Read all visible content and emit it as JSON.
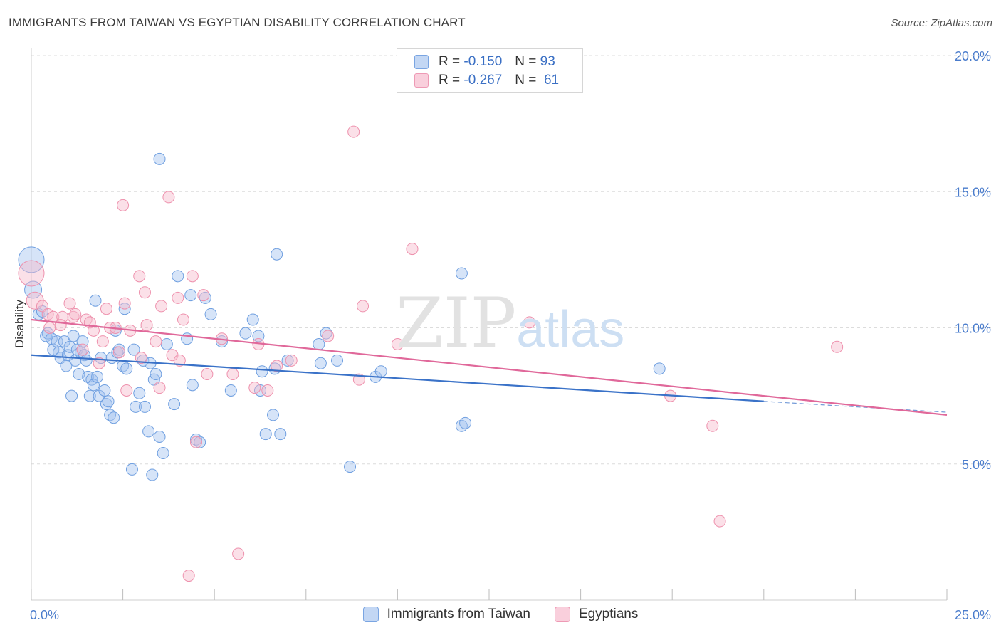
{
  "title": "IMMIGRANTS FROM TAIWAN VS EGYPTIAN DISABILITY CORRELATION CHART",
  "source": "Source: ZipAtlas.com",
  "watermark": {
    "zip": "ZIP",
    "atlas": "atlas"
  },
  "colors": {
    "taiwan": "#6f9fe0",
    "taiwan_line": "#3a72c8",
    "egypt": "#ee91ad",
    "egypt_line": "#e0689a",
    "axis_text": "#4a7ccc"
  },
  "legend": {
    "rows": [
      {
        "r_label": "R = ",
        "r_value": "-0.150",
        "n_label": "N = ",
        "n_value": "93"
      },
      {
        "r_label": "R = ",
        "r_value": "-0.267",
        "n_label": "N = ",
        "n_value": "61"
      }
    ]
  },
  "bottom_legend": [
    "Immigrants from Taiwan",
    "Egyptians"
  ],
  "chart_data": {
    "type": "scatter",
    "xlabel": "",
    "ylabel": "Disability",
    "xlim": [
      0,
      25
    ],
    "ylim": [
      0,
      20
    ],
    "x_ticks": [
      0,
      2.5,
      5,
      7.5,
      10,
      12.5,
      15,
      17.5,
      20,
      22.5,
      25
    ],
    "x_tick_labels": {
      "0": "0.0%",
      "25": "25.0%"
    },
    "y_ticks": [
      5,
      10,
      15,
      20
    ],
    "y_tick_labels": [
      "5.0%",
      "10.0%",
      "15.0%",
      "20.0%"
    ],
    "grid": true,
    "legend_position": "top-center",
    "series": [
      {
        "name": "Immigrants from Taiwan",
        "points": [
          [
            0.0,
            12.5,
            3
          ],
          [
            0.05,
            11.4,
            2
          ],
          [
            0.2,
            10.5,
            1
          ],
          [
            0.3,
            10.6,
            1
          ],
          [
            0.4,
            9.7,
            1
          ],
          [
            0.45,
            9.8,
            1
          ],
          [
            0.55,
            9.6,
            1
          ],
          [
            0.6,
            9.2,
            1
          ],
          [
            0.7,
            9.5,
            1
          ],
          [
            0.75,
            9.1,
            1
          ],
          [
            0.8,
            8.9,
            1
          ],
          [
            0.9,
            9.5,
            1
          ],
          [
            0.95,
            8.6,
            1
          ],
          [
            1.0,
            9.0,
            1
          ],
          [
            1.05,
            9.3,
            1
          ],
          [
            1.1,
            7.5,
            1
          ],
          [
            1.15,
            9.7,
            1
          ],
          [
            1.2,
            8.8,
            1
          ],
          [
            1.25,
            9.2,
            1
          ],
          [
            1.3,
            8.3,
            1
          ],
          [
            1.35,
            9.1,
            1
          ],
          [
            1.4,
            9.5,
            1
          ],
          [
            1.45,
            9.0,
            1
          ],
          [
            1.5,
            8.8,
            1
          ],
          [
            1.55,
            8.2,
            1
          ],
          [
            1.6,
            7.5,
            1
          ],
          [
            1.65,
            8.1,
            1
          ],
          [
            1.7,
            7.9,
            1
          ],
          [
            1.75,
            11.0,
            1
          ],
          [
            1.8,
            8.2,
            1
          ],
          [
            1.85,
            7.5,
            1
          ],
          [
            1.9,
            8.9,
            1
          ],
          [
            2.0,
            7.7,
            1
          ],
          [
            2.05,
            7.2,
            1
          ],
          [
            2.1,
            7.3,
            1
          ],
          [
            2.15,
            6.8,
            1
          ],
          [
            2.2,
            8.9,
            1
          ],
          [
            2.25,
            6.7,
            1
          ],
          [
            2.3,
            9.9,
            1
          ],
          [
            2.35,
            9.1,
            1
          ],
          [
            2.4,
            9.2,
            1
          ],
          [
            2.5,
            8.6,
            1
          ],
          [
            2.55,
            10.7,
            1
          ],
          [
            2.6,
            8.5,
            1
          ],
          [
            2.75,
            4.8,
            1
          ],
          [
            2.8,
            9.2,
            1
          ],
          [
            2.85,
            7.1,
            1
          ],
          [
            2.95,
            7.6,
            1
          ],
          [
            3.05,
            8.8,
            1
          ],
          [
            3.1,
            7.1,
            1
          ],
          [
            3.2,
            6.2,
            1
          ],
          [
            3.25,
            8.7,
            1
          ],
          [
            3.3,
            4.6,
            1
          ],
          [
            3.35,
            8.1,
            1
          ],
          [
            3.4,
            8.3,
            1
          ],
          [
            3.5,
            16.2,
            1
          ],
          [
            3.5,
            6.0,
            1
          ],
          [
            3.6,
            5.4,
            1
          ],
          [
            3.7,
            9.4,
            1
          ],
          [
            3.9,
            7.2,
            1
          ],
          [
            4.0,
            11.9,
            1
          ],
          [
            4.25,
            9.6,
            1
          ],
          [
            4.35,
            11.2,
            1
          ],
          [
            4.4,
            7.9,
            1
          ],
          [
            4.5,
            5.9,
            1
          ],
          [
            4.6,
            5.8,
            1
          ],
          [
            4.75,
            11.1,
            1
          ],
          [
            4.9,
            10.5,
            1
          ],
          [
            5.2,
            9.5,
            1
          ],
          [
            5.45,
            7.7,
            1
          ],
          [
            5.85,
            9.8,
            1
          ],
          [
            6.05,
            10.3,
            1
          ],
          [
            6.2,
            9.7,
            1
          ],
          [
            6.25,
            7.7,
            1
          ],
          [
            6.3,
            8.4,
            1
          ],
          [
            6.4,
            6.1,
            1
          ],
          [
            6.6,
            6.8,
            1
          ],
          [
            6.65,
            8.5,
            1
          ],
          [
            6.7,
            12.7,
            1
          ],
          [
            6.8,
            6.1,
            1
          ],
          [
            7.0,
            8.8,
            1
          ],
          [
            7.85,
            9.4,
            1
          ],
          [
            7.9,
            8.7,
            1
          ],
          [
            8.05,
            9.8,
            1
          ],
          [
            8.35,
            8.8,
            1
          ],
          [
            8.7,
            4.9,
            1
          ],
          [
            9.4,
            8.2,
            1
          ],
          [
            9.55,
            8.4,
            1
          ],
          [
            11.75,
            6.4,
            1
          ],
          [
            11.85,
            6.5,
            1
          ],
          [
            11.75,
            12.0,
            1
          ],
          [
            17.15,
            8.5,
            1
          ]
        ],
        "trend": {
          "x": [
            0,
            20
          ],
          "y": [
            9.0,
            7.3
          ],
          "dashed_to": [
            25,
            6.9
          ]
        }
      },
      {
        "name": "Egyptians",
        "points": [
          [
            0.0,
            12.0,
            3
          ],
          [
            0.1,
            11.0,
            2
          ],
          [
            0.3,
            10.8,
            1
          ],
          [
            0.45,
            10.5,
            1
          ],
          [
            0.5,
            10.0,
            1
          ],
          [
            0.6,
            10.4,
            1
          ],
          [
            0.85,
            10.4,
            1
          ],
          [
            1.05,
            10.9,
            1
          ],
          [
            1.15,
            10.4,
            1
          ],
          [
            1.2,
            10.5,
            1
          ],
          [
            1.4,
            9.2,
            1
          ],
          [
            1.5,
            10.3,
            1
          ],
          [
            1.6,
            10.2,
            1
          ],
          [
            1.7,
            9.9,
            1
          ],
          [
            1.85,
            8.7,
            1
          ],
          [
            1.95,
            9.5,
            1
          ],
          [
            2.05,
            10.7,
            1
          ],
          [
            2.15,
            10.0,
            1
          ],
          [
            2.3,
            10.0,
            1
          ],
          [
            2.4,
            9.1,
            1
          ],
          [
            2.5,
            14.5,
            1
          ],
          [
            2.55,
            10.9,
            1
          ],
          [
            2.6,
            7.7,
            1
          ],
          [
            2.7,
            9.9,
            1
          ],
          [
            2.95,
            11.9,
            1
          ],
          [
            3.0,
            8.9,
            1
          ],
          [
            3.1,
            11.3,
            1
          ],
          [
            3.15,
            10.1,
            1
          ],
          [
            3.4,
            9.5,
            1
          ],
          [
            3.5,
            7.8,
            1
          ],
          [
            3.55,
            10.8,
            1
          ],
          [
            3.75,
            14.8,
            1
          ],
          [
            3.85,
            9.0,
            1
          ],
          [
            4.0,
            11.1,
            1
          ],
          [
            4.05,
            8.8,
            1
          ],
          [
            4.15,
            10.3,
            1
          ],
          [
            4.3,
            0.9,
            1
          ],
          [
            4.4,
            11.9,
            1
          ],
          [
            4.5,
            5.8,
            1
          ],
          [
            4.7,
            11.2,
            1
          ],
          [
            4.8,
            8.3,
            1
          ],
          [
            5.2,
            9.6,
            1
          ],
          [
            5.5,
            8.3,
            1
          ],
          [
            5.65,
            1.7,
            1
          ],
          [
            6.1,
            7.8,
            1
          ],
          [
            6.2,
            9.4,
            1
          ],
          [
            6.45,
            7.7,
            1
          ],
          [
            6.7,
            8.6,
            1
          ],
          [
            7.1,
            8.8,
            1
          ],
          [
            8.1,
            9.7,
            1
          ],
          [
            8.8,
            17.2,
            1
          ],
          [
            8.95,
            8.1,
            1
          ],
          [
            9.05,
            10.8,
            1
          ],
          [
            10.0,
            9.4,
            1
          ],
          [
            10.4,
            12.9,
            1
          ],
          [
            13.6,
            10.2,
            1
          ],
          [
            17.45,
            7.5,
            1
          ],
          [
            18.6,
            6.4,
            1
          ],
          [
            18.8,
            2.9,
            1
          ],
          [
            22.0,
            9.3,
            1
          ],
          [
            0.8,
            10.1,
            1
          ]
        ],
        "trend": {
          "x": [
            0,
            25
          ],
          "y": [
            10.3,
            6.8
          ]
        }
      }
    ]
  }
}
